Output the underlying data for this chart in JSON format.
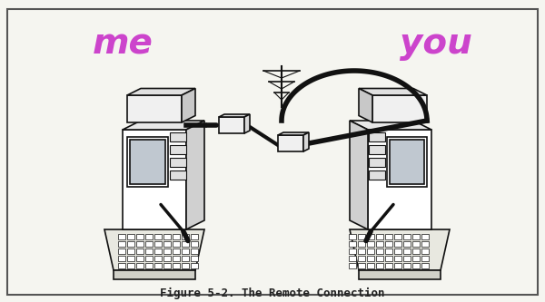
{
  "title": "Figure 5-2. The Remote Connection",
  "label_me": "me",
  "label_you": "you",
  "label_color": "#cc44cc",
  "bg_color": "#f5f5f0",
  "border_color": "#333333",
  "line_color": "#111111",
  "title_fontsize": 9,
  "label_fontsize": 28,
  "fig_width": 6.0,
  "fig_height": 3.33,
  "dpi": 100
}
